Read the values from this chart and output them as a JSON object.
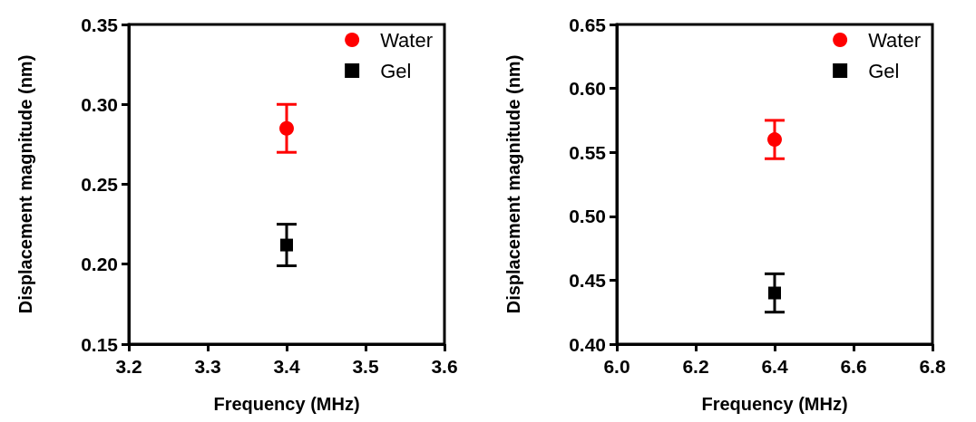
{
  "chart_data": [
    {
      "type": "scatter",
      "xlabel": "Frequency (MHz)",
      "ylabel": "Displacement magnitude (nm)",
      "xlim": [
        3.2,
        3.6
      ],
      "xticks": [
        3.2,
        3.3,
        3.4,
        3.5,
        3.6
      ],
      "ylim": [
        0.15,
        0.35
      ],
      "yticks": [
        0.15,
        {
          "value": 0.2,
          "label": "0.20"
        },
        0.25,
        {
          "value": 0.3,
          "label": "0.30"
        },
        0.35
      ],
      "grid": false,
      "legend": "top right",
      "x": [
        3.4
      ],
      "series": [
        {
          "name": "Water",
          "color": "#ff0000",
          "marker": "circle",
          "values": [
            0.285
          ],
          "errors": [
            0.015
          ]
        },
        {
          "name": "Gel",
          "color": "#000000",
          "marker": "square",
          "values": [
            0.212
          ],
          "errors": [
            0.013
          ]
        }
      ]
    },
    {
      "type": "scatter",
      "xlabel": "Frequency (MHz)",
      "ylabel": "Displacement magnitude (nm)",
      "xlim": [
        6.0,
        6.8
      ],
      "xticks": [
        {
          "value": 6,
          "label": "6.0"
        },
        6.2,
        6.4,
        6.6,
        6.8
      ],
      "ylim": [
        0.4,
        0.65
      ],
      "yticks": [
        {
          "value": 0.4,
          "label": "0.40"
        },
        0.45,
        {
          "value": 0.5,
          "label": "0.50"
        },
        0.55,
        {
          "value": 0.6,
          "label": "0.60"
        },
        0.65
      ],
      "grid": false,
      "legend": "top right",
      "x": [
        6.4
      ],
      "series": [
        {
          "name": "Water",
          "color": "#ff0000",
          "marker": "circle",
          "values": [
            0.56
          ],
          "errors": [
            0.015
          ]
        },
        {
          "name": "Gel",
          "color": "#000000",
          "marker": "square",
          "values": [
            0.44
          ],
          "errors": [
            0.015
          ]
        }
      ]
    }
  ]
}
